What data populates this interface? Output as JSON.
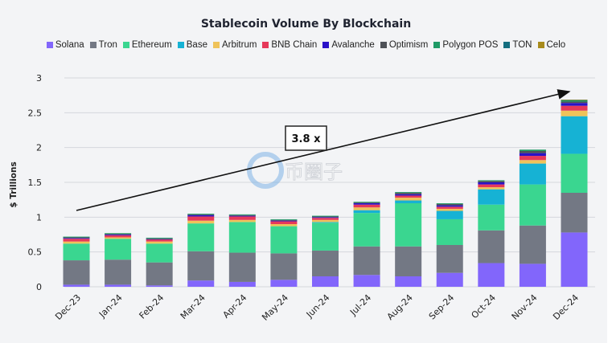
{
  "chart_data": {
    "type": "bar",
    "stacked": true,
    "title": "Stablecoin Volume By Blockchain",
    "ylabel": "$ Trillions",
    "xlabel": "",
    "ylim": [
      0,
      3
    ],
    "yticks": [
      "0",
      "0.5",
      "1",
      "1.5",
      "2",
      "2.5",
      "3"
    ],
    "grid": true,
    "legend_position": "top",
    "categories": [
      "Dec-23",
      "Jan-24",
      "Feb-24",
      "Mar-24",
      "Apr-24",
      "May-24",
      "Jun-24",
      "Jul-24",
      "Aug-24",
      "Sep-24",
      "Oct-24",
      "Nov-24",
      "Dec-24"
    ],
    "series": [
      {
        "name": "Solana",
        "color": "#8266fb",
        "values": [
          0.03,
          0.03,
          0.02,
          0.09,
          0.07,
          0.1,
          0.15,
          0.17,
          0.15,
          0.2,
          0.34,
          0.33,
          0.78
        ]
      },
      {
        "name": "Tron",
        "color": "#737884",
        "values": [
          0.35,
          0.36,
          0.33,
          0.42,
          0.42,
          0.38,
          0.37,
          0.41,
          0.43,
          0.4,
          0.47,
          0.55,
          0.57
        ]
      },
      {
        "name": "Ethereum",
        "color": "#3ad690",
        "values": [
          0.24,
          0.3,
          0.27,
          0.4,
          0.44,
          0.39,
          0.4,
          0.48,
          0.62,
          0.37,
          0.37,
          0.59,
          0.56
        ]
      },
      {
        "name": "Base",
        "color": "#16b2d4",
        "values": [
          0,
          0,
          0,
          0,
          0,
          0,
          0.01,
          0.04,
          0.04,
          0.12,
          0.22,
          0.3,
          0.54
        ]
      },
      {
        "name": "Arbitrum",
        "color": "#efc35a",
        "values": [
          0.03,
          0.02,
          0.03,
          0.04,
          0.03,
          0.03,
          0.03,
          0.04,
          0.04,
          0.03,
          0.03,
          0.05,
          0.08
        ]
      },
      {
        "name": "BNB Chain",
        "color": "#e6395a",
        "values": [
          0.04,
          0.03,
          0.03,
          0.06,
          0.05,
          0.04,
          0.03,
          0.04,
          0.03,
          0.03,
          0.04,
          0.06,
          0.07
        ]
      },
      {
        "name": "Avalanche",
        "color": "#2a12c8",
        "values": [
          0.01,
          0.01,
          0.005,
          0.02,
          0.01,
          0.01,
          0.01,
          0.02,
          0.02,
          0.02,
          0.03,
          0.04,
          0.04
        ]
      },
      {
        "name": "Optimism",
        "color": "#4f5258",
        "values": [
          0.01,
          0.01,
          0.01,
          0.01,
          0.01,
          0.01,
          0.01,
          0.01,
          0.02,
          0.02,
          0.02,
          0.03,
          0.02
        ]
      },
      {
        "name": "Polygon POS",
        "color": "#1f9a66",
        "values": [
          0.01,
          0.01,
          0.01,
          0.01,
          0.01,
          0.01,
          0.01,
          0.01,
          0.01,
          0.01,
          0.01,
          0.02,
          0.02
        ]
      },
      {
        "name": "TON",
        "color": "#156f80",
        "values": [
          0,
          0,
          0,
          0,
          0,
          0,
          0,
          0,
          0,
          0,
          0,
          0,
          0.005
        ]
      },
      {
        "name": "Celo",
        "color": "#a88b1c",
        "values": [
          0,
          0,
          0,
          0,
          0,
          0,
          0,
          0,
          0,
          0,
          0,
          0,
          0.003
        ]
      }
    ],
    "annotations": [
      {
        "text": "3.8 x",
        "type": "growth-arrow",
        "from": "Dec-23",
        "to": "Dec-24"
      }
    ]
  },
  "watermark": "币圈子"
}
